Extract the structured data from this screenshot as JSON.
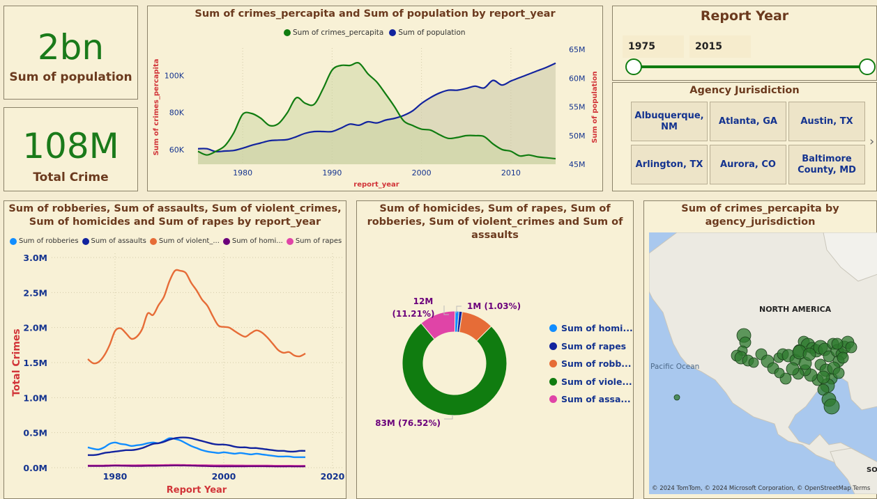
{
  "kpis": {
    "population": {
      "value": "2bn",
      "label": "Sum of population"
    },
    "crime": {
      "value": "108M",
      "label": "Total Crime"
    }
  },
  "chart_data": [
    {
      "type": "line",
      "title": "Sum of crimes_percapita and Sum of population by report_year",
      "xlabel": "report_year",
      "ylabel": "Sum of crimes_percapita",
      "ylabel2": "Sum of population",
      "x_ticks": [
        "1980",
        "1990",
        "2000",
        "2010"
      ],
      "y_ticks": [
        "60K",
        "80K",
        "100K"
      ],
      "y2_ticks": [
        "45M",
        "50M",
        "55M",
        "60M",
        "65M"
      ],
      "x": [
        1975,
        1976,
        1977,
        1978,
        1979,
        1980,
        1981,
        1982,
        1983,
        1984,
        1985,
        1986,
        1987,
        1988,
        1989,
        1990,
        1991,
        1992,
        1993,
        1994,
        1995,
        1996,
        1997,
        1998,
        1999,
        2000,
        2001,
        2002,
        2003,
        2004,
        2005,
        2006,
        2007,
        2008,
        2009,
        2010,
        2011,
        2012,
        2013,
        2014,
        2015
      ],
      "series": [
        {
          "name": "Sum of crimes_percapita",
          "color": "#107c10",
          "axis": "left",
          "values": [
            59000,
            57000,
            59000,
            62000,
            69000,
            79000,
            79500,
            77000,
            73000,
            74000,
            80000,
            88000,
            85000,
            84500,
            93000,
            103000,
            105500,
            105500,
            106800,
            101000,
            96500,
            90000,
            83000,
            75500,
            73000,
            71000,
            70500,
            68000,
            66000,
            66500,
            67500,
            67500,
            67000,
            63000,
            60000,
            59000,
            56500,
            57000,
            56000,
            55500,
            55000
          ]
        },
        {
          "name": "Sum of population",
          "color": "#12239e",
          "axis": "right",
          "values": [
            47.7,
            47.7,
            47.2,
            47.3,
            47.4,
            47.8,
            48.3,
            48.7,
            49.1,
            49.2,
            49.3,
            49.8,
            50.4,
            50.7,
            50.7,
            50.7,
            51.3,
            52.0,
            51.8,
            52.4,
            52.2,
            52.7,
            53.0,
            53.5,
            54.3,
            55.6,
            56.6,
            57.4,
            57.9,
            57.9,
            58.2,
            58.6,
            58.3,
            59.6,
            58.8,
            59.5,
            60.1,
            60.7,
            61.3,
            61.9,
            62.6
          ]
        }
      ]
    },
    {
      "type": "line",
      "title": "Sum of robberies, Sum of assaults, Sum of violent_crimes, Sum of homicides and Sum of rapes by report_year",
      "xlabel": "Report Year",
      "ylabel": "Total Crimes",
      "x_ticks": [
        "1980",
        "2000",
        "2020"
      ],
      "y_ticks": [
        "0.0M",
        "0.5M",
        "1.0M",
        "1.5M",
        "2.0M",
        "2.5M",
        "3.0M"
      ],
      "ylim": [
        0,
        3.0
      ],
      "x": [
        1975,
        1976,
        1977,
        1978,
        1979,
        1980,
        1981,
        1982,
        1983,
        1984,
        1985,
        1986,
        1987,
        1988,
        1989,
        1990,
        1991,
        1992,
        1993,
        1994,
        1995,
        1996,
        1997,
        1998,
        1999,
        2000,
        2001,
        2002,
        2003,
        2004,
        2005,
        2006,
        2007,
        2008,
        2009,
        2010,
        2011,
        2012,
        2013,
        2014,
        2015
      ],
      "series": [
        {
          "name": "Sum of robberies",
          "color": "#118dff",
          "values": [
            0.29,
            0.27,
            0.26,
            0.29,
            0.34,
            0.36,
            0.34,
            0.33,
            0.31,
            0.32,
            0.33,
            0.35,
            0.36,
            0.35,
            0.38,
            0.42,
            0.41,
            0.39,
            0.35,
            0.31,
            0.28,
            0.25,
            0.23,
            0.22,
            0.21,
            0.22,
            0.21,
            0.2,
            0.21,
            0.2,
            0.19,
            0.2,
            0.19,
            0.18,
            0.17,
            0.16,
            0.16,
            0.16,
            0.15,
            0.15,
            0.15
          ]
        },
        {
          "name": "Sum of assaults",
          "color": "#12239e",
          "values": [
            0.18,
            0.18,
            0.19,
            0.21,
            0.22,
            0.23,
            0.24,
            0.25,
            0.25,
            0.26,
            0.28,
            0.31,
            0.34,
            0.35,
            0.37,
            0.4,
            0.42,
            0.43,
            0.43,
            0.42,
            0.4,
            0.38,
            0.36,
            0.34,
            0.33,
            0.33,
            0.32,
            0.3,
            0.29,
            0.29,
            0.28,
            0.28,
            0.27,
            0.26,
            0.25,
            0.24,
            0.24,
            0.23,
            0.23,
            0.24,
            0.24
          ]
        },
        {
          "name": "Sum of violent_crimes",
          "color": "#e66c37",
          "values": [
            1.55,
            1.49,
            1.51,
            1.6,
            1.75,
            1.95,
            1.99,
            1.92,
            1.84,
            1.87,
            1.98,
            2.2,
            2.18,
            2.32,
            2.44,
            2.66,
            2.81,
            2.81,
            2.78,
            2.64,
            2.53,
            2.4,
            2.31,
            2.16,
            2.03,
            2.01,
            2.0,
            1.95,
            1.9,
            1.87,
            1.92,
            1.96,
            1.93,
            1.86,
            1.77,
            1.68,
            1.64,
            1.65,
            1.6,
            1.59,
            1.63
          ]
        },
        {
          "name": "Sum of homicides",
          "color": "#6b007b",
          "values": [
            0.025,
            0.024,
            0.024,
            0.025,
            0.027,
            0.029,
            0.028,
            0.027,
            0.025,
            0.024,
            0.025,
            0.027,
            0.027,
            0.028,
            0.029,
            0.031,
            0.032,
            0.031,
            0.031,
            0.029,
            0.027,
            0.025,
            0.023,
            0.021,
            0.02,
            0.02,
            0.02,
            0.02,
            0.02,
            0.02,
            0.021,
            0.021,
            0.021,
            0.02,
            0.019,
            0.018,
            0.018,
            0.019,
            0.018,
            0.018,
            0.019
          ]
        },
        {
          "name": "Sum of rapes",
          "color": "#e044a7",
          "values": [
            0.03,
            0.03,
            0.031,
            0.032,
            0.034,
            0.036,
            0.035,
            0.034,
            0.034,
            0.035,
            0.036,
            0.037,
            0.037,
            0.037,
            0.038,
            0.04,
            0.041,
            0.04,
            0.039,
            0.038,
            0.037,
            0.036,
            0.035,
            0.034,
            0.033,
            0.033,
            0.033,
            0.032,
            0.032,
            0.031,
            0.031,
            0.031,
            0.03,
            0.03,
            0.029,
            0.028,
            0.028,
            0.028,
            0.027,
            0.027,
            0.027
          ]
        }
      ]
    },
    {
      "type": "pie",
      "title": "Sum of homicides, Sum of rapes, Sum of robberies, Sum of violent_crimes and Sum of assaults",
      "slices": [
        {
          "name": "Sum of homicides",
          "color": "#118dff",
          "value": 1.2
        },
        {
          "name": "Sum of rapes",
          "color": "#12239e",
          "value": 1.03
        },
        {
          "name": "Sum of robberies",
          "color": "#e66c37",
          "value": 10.04
        },
        {
          "name": "Sum of violent_crimes",
          "color": "#107c10",
          "value": 76.52
        },
        {
          "name": "Sum of assaults",
          "color": "#e044a7",
          "value": 11.21
        }
      ],
      "legend_labels": [
        "Sum of homi...",
        "Sum of rapes",
        "Sum of robb...",
        "Sum of viole...",
        "Sum of assa..."
      ],
      "data_labels": {
        "assaults_value": "12M",
        "assaults_pct": "(11.21%)",
        "rapes": "1M (1.03%)",
        "violent": "83M (76.52%)"
      }
    }
  ],
  "chart1_legend": [
    "Sum of crimes_percapita",
    "Sum of population"
  ],
  "chart2_legend": [
    "Sum of robberies",
    "Sum of assaults",
    "Sum of violent_...",
    "Sum of homi...",
    "Sum of rapes"
  ],
  "slicer": {
    "title": "Report Year",
    "from": "1975",
    "to": "2015"
  },
  "jurisdiction": {
    "title": "Agency Jurisdiction",
    "tiles": [
      "Albuquerque, NM",
      "Atlanta, GA",
      "Austin, TX",
      "Arlington, TX",
      "Aurora, CO",
      "Baltimore County, MD"
    ],
    "next": "›"
  },
  "map": {
    "title": "Sum of crimes_percapita by agency_jurisdiction",
    "labels": {
      "continent": "NORTH AMERICA",
      "ocean": "Pacific Ocean",
      "south": "SOUT"
    },
    "attribution": "© 2024 TomTom, © 2024 Microsoft Corporation, © OpenStreetMap  Terms",
    "dot_color": "#2d7a2d"
  }
}
